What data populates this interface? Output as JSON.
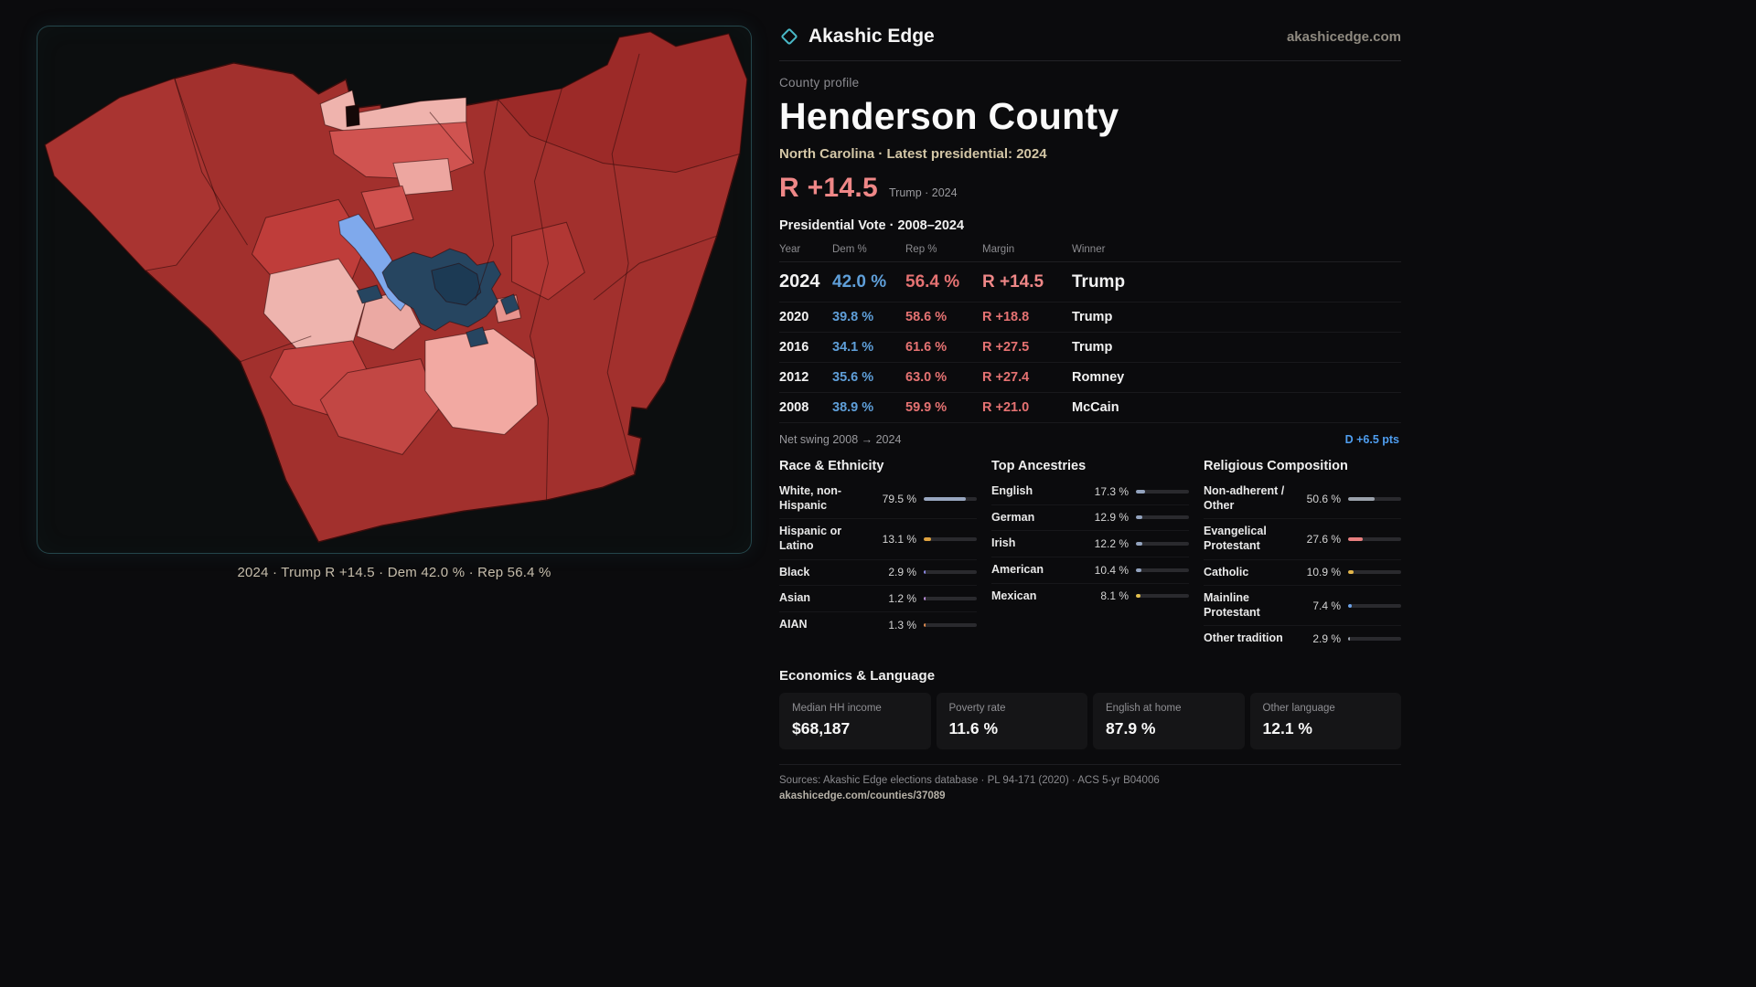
{
  "header": {
    "brand": "Akashic Edge",
    "site": "akashicedge.com"
  },
  "map_panel": {
    "caption": "2024 · Trump R +14.5 · Dem 42.0 % · Rep 56.4 %"
  },
  "profile": {
    "kicker": "County profile",
    "title": "Henderson County",
    "subtitle": "North Carolina · Latest presidential: 2024",
    "margin_headline": "R +14.5",
    "margin_note": "Trump · 2024"
  },
  "vote_table": {
    "title": "Presidential Vote · 2008–2024",
    "columns": {
      "year": "Year",
      "dem": "Dem %",
      "rep": "Rep %",
      "margin": "Margin",
      "winner": "Winner"
    },
    "rows": [
      {
        "year": "2024",
        "dem": "42.0 %",
        "rep": "56.4 %",
        "margin": "R +14.5",
        "winner": "Trump"
      },
      {
        "year": "2020",
        "dem": "39.8 %",
        "rep": "58.6 %",
        "margin": "R +18.8",
        "winner": "Trump"
      },
      {
        "year": "2016",
        "dem": "34.1 %",
        "rep": "61.6 %",
        "margin": "R +27.5",
        "winner": "Trump"
      },
      {
        "year": "2012",
        "dem": "35.6 %",
        "rep": "63.0 %",
        "margin": "R +27.4",
        "winner": "Romney"
      },
      {
        "year": "2008",
        "dem": "38.9 %",
        "rep": "59.9 %",
        "margin": "R +21.0",
        "winner": "McCain"
      }
    ],
    "net_swing_label": "Net swing 2008 → 2024",
    "net_swing_value": "D +6.5 pts"
  },
  "race": {
    "title": "Race & Ethnicity",
    "items": [
      {
        "label": "White, non-Hispanic",
        "value": "79.5 %",
        "pct": 79.5,
        "color": "#98a6bf"
      },
      {
        "label": "Hispanic or Latino",
        "value": "13.1 %",
        "pct": 13.1,
        "color": "#dfa23f"
      },
      {
        "label": "Black",
        "value": "2.9 %",
        "pct": 2.9,
        "color": "#8a86e0"
      },
      {
        "label": "Asian",
        "value": "1.2 %",
        "pct": 1.2,
        "color": "#b78ad4"
      },
      {
        "label": "AIAN",
        "value": "1.3 %",
        "pct": 1.3,
        "color": "#dd8a4e"
      }
    ]
  },
  "ancestries": {
    "title": "Top Ancestries",
    "items": [
      {
        "label": "English",
        "value": "17.3 %",
        "pct": 17.3,
        "color": "#93a3be"
      },
      {
        "label": "German",
        "value": "12.9 %",
        "pct": 12.9,
        "color": "#93a3be"
      },
      {
        "label": "Irish",
        "value": "12.2 %",
        "pct": 12.2,
        "color": "#93a3be"
      },
      {
        "label": "American",
        "value": "10.4 %",
        "pct": 10.4,
        "color": "#93a3be"
      },
      {
        "label": "Mexican",
        "value": "8.1 %",
        "pct": 8.1,
        "color": "#e3c04d"
      }
    ]
  },
  "religion": {
    "title": "Religious Composition",
    "items": [
      {
        "label": "Non-adherent / Other",
        "value": "50.6 %",
        "pct": 50.6,
        "color": "#9aa1ab"
      },
      {
        "label": "Evangelical Protestant",
        "value": "27.6 %",
        "pct": 27.6,
        "color": "#e87f7f"
      },
      {
        "label": "Catholic",
        "value": "10.9 %",
        "pct": 10.9,
        "color": "#e2b54a"
      },
      {
        "label": "Mainline Protestant",
        "value": "7.4 %",
        "pct": 7.4,
        "color": "#6ba1e8"
      },
      {
        "label": "Other tradition",
        "value": "2.9 %",
        "pct": 2.9,
        "color": "#9aa1ab"
      }
    ]
  },
  "economics": {
    "title": "Economics & Language",
    "stats": [
      {
        "label": "Median HH income",
        "value": "$68,187"
      },
      {
        "label": "Poverty rate",
        "value": "11.6 %"
      },
      {
        "label": "English at home",
        "value": "87.9 %"
      },
      {
        "label": "Other language",
        "value": "12.1 %"
      }
    ]
  },
  "footer": {
    "sources": "Sources: Akashic Edge elections database · PL 94-171 (2020) · ACS 5-yr B04006",
    "permalink": "akashicedge.com/counties/37089"
  },
  "colors": {
    "dem": "#5f9fd9",
    "rep": "#e57272",
    "headline": "#ef8787",
    "swing": "#4f9ef0",
    "accent": "#49b8c6"
  }
}
